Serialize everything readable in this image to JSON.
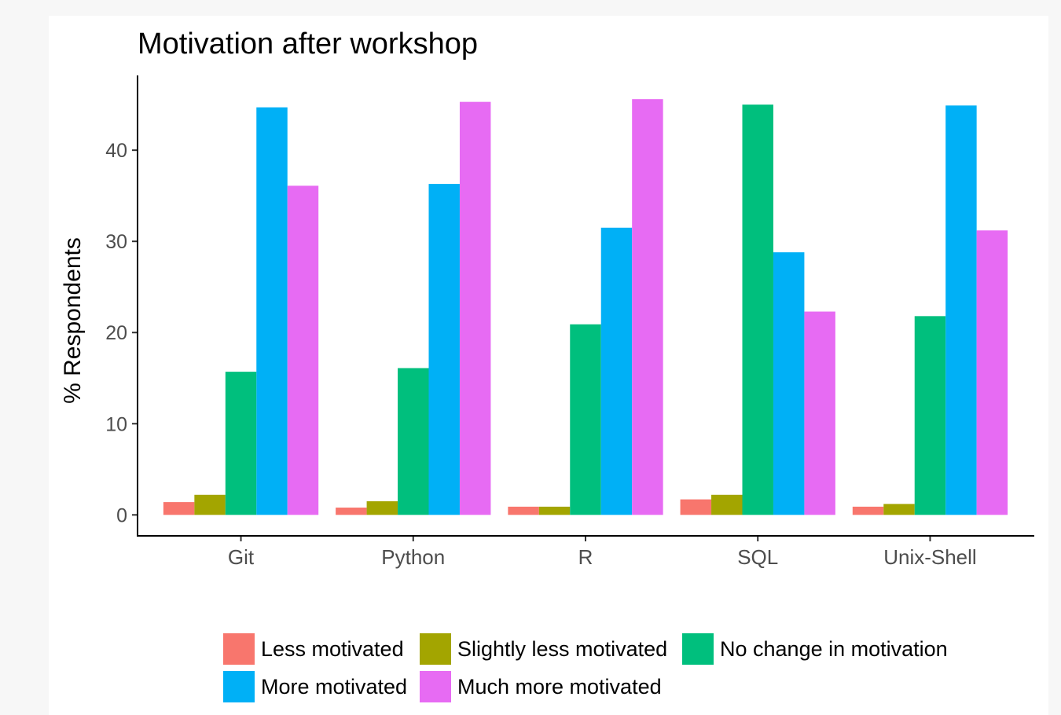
{
  "chart_data": {
    "type": "bar",
    "title": "Motivation after workshop",
    "xlabel": "",
    "ylabel": "% Respondents",
    "ylim": [
      -2.3,
      48.2
    ],
    "yticks": [
      0,
      10,
      20,
      30,
      40
    ],
    "grid": false,
    "legend_position": "bottom",
    "categories": [
      "Git",
      "Python",
      "R",
      "SQL",
      "Unix-Shell"
    ],
    "series": [
      {
        "name": "Less motivated",
        "color": "#F8766D",
        "values": [
          1.4,
          0.8,
          0.9,
          1.7,
          0.9
        ]
      },
      {
        "name": "Slightly less motivated",
        "color": "#A3A500",
        "values": [
          2.2,
          1.5,
          0.9,
          2.2,
          1.2
        ]
      },
      {
        "name": "No change in motivation",
        "color": "#00BF7D",
        "values": [
          15.7,
          16.1,
          20.9,
          45.0,
          21.8
        ]
      },
      {
        "name": "More motivated",
        "color": "#00B0F6",
        "values": [
          44.7,
          36.3,
          31.5,
          28.8,
          44.9
        ]
      },
      {
        "name": "Much more motivated",
        "color": "#E76BF3",
        "values": [
          36.1,
          45.3,
          45.6,
          22.3,
          31.2
        ]
      }
    ]
  }
}
